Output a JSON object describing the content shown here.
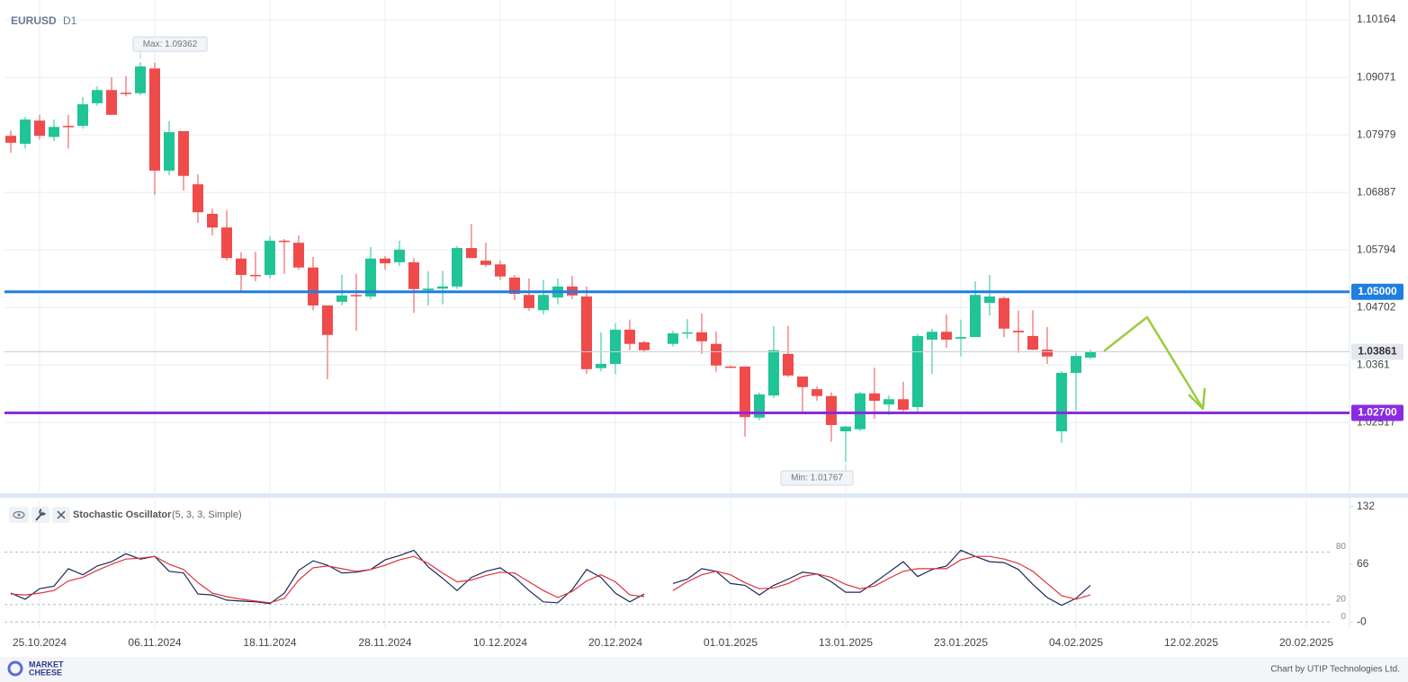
{
  "header": {
    "symbol": "EURUSD",
    "timeframe": "D1"
  },
  "chart_data": [
    {
      "type": "candlestick",
      "xlim": [
        -0.4375,
        93
      ],
      "xticks": [
        {
          "value": 2,
          "label": "25.10.2024"
        },
        {
          "value": 10,
          "label": "06.11.2024"
        },
        {
          "value": 18,
          "label": "18.11.2024"
        },
        {
          "value": 26,
          "label": "28.11.2024"
        },
        {
          "value": 34,
          "label": "10.12.2024"
        },
        {
          "value": 42,
          "label": "20.12.2024"
        },
        {
          "value": 50,
          "label": "01.01.2025"
        },
        {
          "value": 58,
          "label": "13.01.2025"
        },
        {
          "value": 66,
          "label": "23.01.2025"
        },
        {
          "value": 74,
          "label": "04.02.2025"
        },
        {
          "value": 82,
          "label": "12.02.2025"
        },
        {
          "value": 90,
          "label": "20.02.2025"
        }
      ],
      "ylim": [
        1.0119,
        1.1054
      ],
      "yticks": [
        1.10164,
        1.09071,
        1.07979,
        1.06887,
        1.05794,
        1.04702,
        1.0361,
        1.02517
      ],
      "grid": true,
      "up_color": "#20c497",
      "down_color": "#ef4b4b",
      "open": [
        1.0796,
        1.0781,
        1.0825,
        1.0794,
        1.0815,
        1.0815,
        1.0858,
        1.0883,
        1.0878,
        1.0877,
        1.0924,
        1.073,
        1.0805,
        1.0704,
        1.0648,
        1.0622,
        1.0563,
        1.0532,
        1.0532,
        1.0597,
        1.0593,
        1.0546,
        1.0474,
        1.0481,
        1.0494,
        1.0491,
        1.0563,
        1.0556,
        1.0556,
        1.0503,
        1.0506,
        1.051,
        1.0583,
        1.0559,
        1.0552,
        1.0527,
        1.0494,
        1.0465,
        1.0489,
        1.051,
        1.0491,
        1.0355,
        1.0363,
        1.0428,
        1.0404,
        null,
        1.0401,
        1.0421,
        1.0423,
        1.0401,
        1.0358,
        1.0358,
        1.0261,
        1.0303,
        1.0382,
        1.0339,
        1.0315,
        1.0302,
        1.0235,
        1.0239,
        1.0307,
        1.0286,
        1.0296,
        1.0281,
        1.0409,
        1.0424,
        1.0411,
        1.0414,
        1.0479,
        1.0488,
        1.0426,
        1.0416,
        1.039,
        1.0235,
        1.0346,
        1.0375
      ],
      "high": [
        1.0806,
        1.0832,
        1.0836,
        1.0827,
        1.0836,
        1.087,
        1.089,
        1.0907,
        1.0909,
        1.0936,
        1.0935,
        1.0824,
        1.0805,
        1.0723,
        1.0658,
        1.0655,
        1.0575,
        1.0576,
        1.0605,
        1.06,
        1.0607,
        1.0566,
        1.0474,
        1.0532,
        1.0534,
        1.0585,
        1.0568,
        1.0597,
        1.0564,
        1.0539,
        1.054,
        1.0587,
        1.0629,
        1.0593,
        1.0559,
        1.0532,
        1.0525,
        1.0522,
        1.0525,
        1.053,
        1.051,
        1.0423,
        1.044,
        1.0447,
        1.0407,
        null,
        1.0426,
        1.0448,
        1.0459,
        1.0425,
        1.036,
        1.0358,
        1.0309,
        1.0435,
        1.0435,
        1.0339,
        1.032,
        1.0309,
        1.0245,
        1.031,
        1.0356,
        1.0303,
        1.0329,
        1.042,
        1.043,
        1.0457,
        1.0447,
        1.052,
        1.0532,
        1.0491,
        1.0464,
        1.0465,
        1.0433,
        1.0349,
        1.0384,
        1.039
      ],
      "low": [
        1.0764,
        1.0772,
        1.0789,
        1.0786,
        1.0772,
        1.081,
        1.0853,
        1.0836,
        1.0871,
        1.0873,
        1.0684,
        1.0721,
        1.0692,
        1.0631,
        1.0607,
        1.0559,
        1.0501,
        1.052,
        1.0525,
        1.0534,
        1.0542,
        1.0465,
        1.0334,
        1.0474,
        1.0426,
        1.0486,
        1.0542,
        1.0549,
        1.046,
        1.0474,
        1.0476,
        1.0505,
        1.0564,
        1.0547,
        1.0522,
        1.0484,
        1.0464,
        1.0457,
        1.0476,
        1.0486,
        1.0344,
        1.0349,
        1.0344,
        1.0389,
        1.0385,
        null,
        1.0396,
        1.0411,
        1.0382,
        1.0348,
        1.0355,
        1.0225,
        1.0256,
        1.0298,
        1.0338,
        1.0269,
        1.0293,
        1.0215,
        1.0177,
        1.0235,
        1.0259,
        1.0266,
        1.0273,
        1.0268,
        1.0344,
        1.0394,
        1.0377,
        1.0414,
        1.0455,
        1.0414,
        1.0384,
        1.0389,
        1.0363,
        1.0213,
        1.0274,
        1.0372
      ],
      "close": [
        1.0783,
        1.0827,
        1.0796,
        1.0813,
        1.0813,
        1.0856,
        1.0883,
        1.0836,
        1.0877,
        1.0928,
        1.073,
        1.0803,
        1.072,
        1.0651,
        1.0622,
        1.0564,
        1.0532,
        1.053,
        1.0597,
        1.0595,
        1.0546,
        1.0474,
        1.0418,
        1.0493,
        1.0493,
        1.0563,
        1.0554,
        1.058,
        1.0505,
        1.0506,
        1.051,
        1.0583,
        1.0564,
        1.0551,
        1.0529,
        1.0496,
        1.0469,
        1.0494,
        1.051,
        1.0493,
        1.0353,
        1.0363,
        1.0428,
        1.0401,
        1.0389,
        null,
        1.0421,
        1.0423,
        1.0406,
        1.036,
        1.0356,
        1.0262,
        1.0305,
        1.0389,
        1.0341,
        1.0319,
        1.0302,
        1.0247,
        1.0244,
        1.0307,
        1.0293,
        1.0296,
        1.0276,
        1.0416,
        1.0424,
        1.0409,
        1.0414,
        1.0494,
        1.0491,
        1.043,
        1.0423,
        1.039,
        1.0377,
        1.0346,
        1.0378,
        1.0386
      ],
      "max_label": "Max: 1.09362",
      "min_label": "Min: 1.01767",
      "levels": [
        {
          "value": 1.05,
          "label": "1.05000",
          "color": "#1f7ee0"
        },
        {
          "value": 1.027,
          "label": "1.02700",
          "color": "#8a2be2"
        }
      ],
      "last_price": {
        "value": 1.03861,
        "label": "1.03861"
      }
    },
    {
      "type": "line",
      "title": "Stochastic Oscillator",
      "subtitle": "(5, 3, 3, Simple)",
      "ylim": [
        -8,
        140
      ],
      "yticks": [
        132,
        66,
        {
          "value": 0,
          "label": "-0"
        }
      ],
      "levels": [
        80,
        20,
        0
      ],
      "series": [
        {
          "color": "#1b2a5c",
          "values": [
            33,
            26,
            38,
            41,
            61,
            54,
            64,
            69,
            78,
            72,
            75,
            58,
            56,
            32,
            31,
            25,
            24,
            23,
            21,
            33,
            59,
            70,
            65,
            56,
            57,
            60,
            71,
            76,
            82,
            63,
            50,
            36,
            51,
            58,
            62,
            51,
            36,
            23,
            22,
            37,
            60,
            51,
            33,
            23,
            32,
            null,
            44,
            49,
            61,
            58,
            44,
            42,
            31,
            42,
            49,
            57,
            55,
            46,
            34,
            34,
            45,
            57,
            69,
            52,
            60,
            64,
            82,
            75,
            69,
            68,
            60,
            43,
            28,
            19,
            27,
            42
          ]
        },
        {
          "color": "#e0323c",
          "values": [
            32,
            31,
            33,
            36,
            47,
            51,
            59,
            66,
            72,
            73,
            75,
            66,
            60,
            45,
            33,
            29,
            26,
            24,
            22,
            27,
            48,
            62,
            64,
            61,
            58,
            60,
            65,
            71,
            75,
            67,
            56,
            46,
            48,
            53,
            57,
            56,
            46,
            36,
            28,
            35,
            47,
            54,
            46,
            31,
            29,
            null,
            36,
            46,
            54,
            58,
            54,
            45,
            38,
            39,
            44,
            52,
            55,
            51,
            43,
            38,
            41,
            50,
            58,
            61,
            61,
            61,
            71,
            75,
            75,
            72,
            67,
            58,
            44,
            30,
            26,
            31
          ]
        }
      ]
    }
  ],
  "footer": {
    "logo_top": "MARKET",
    "logo_bottom": "CHEESE",
    "credit": "Chart by UTIP Technologies Ltd."
  }
}
